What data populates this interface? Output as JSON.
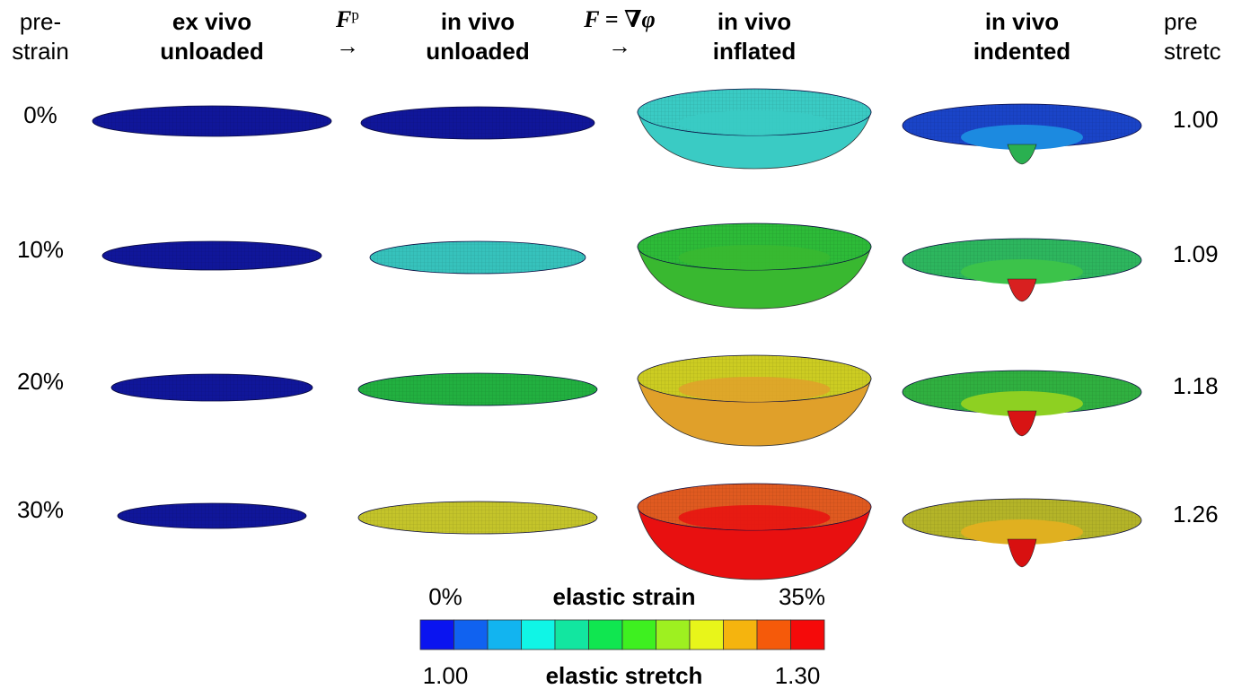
{
  "row_header": {
    "lines": [
      "pre-",
      "strain"
    ]
  },
  "right_header": {
    "lines": [
      "pre",
      "stretc"
    ]
  },
  "columns": [
    {
      "lines": [
        "ex vivo",
        "unloaded"
      ]
    },
    {
      "lines": [
        "in vivo",
        "unloaded"
      ]
    },
    {
      "lines": [
        "in vivo",
        "inflated"
      ]
    },
    {
      "lines": [
        "in vivo",
        "indented"
      ]
    }
  ],
  "arrows": [
    {
      "symbol": "F",
      "superscript": "p",
      "arrow": "→"
    },
    {
      "symbol": "F = ∇φ",
      "arrow": "→"
    }
  ],
  "rows": [
    {
      "prestrain": "0%",
      "prestretch": "1.00"
    },
    {
      "prestrain": "10%",
      "prestretch": "1.09"
    },
    {
      "prestrain": "20%",
      "prestretch": "1.18"
    },
    {
      "prestrain": "30%",
      "prestretch": "1.26"
    }
  ],
  "colorbar": {
    "strain_label": "elastic strain",
    "strain_min": "0%",
    "strain_max": "35%",
    "stretch_label": "elastic stretch",
    "stretch_min": "1.00",
    "stretch_max": "1.30",
    "colors": [
      "#0a14f0",
      "#1062f0",
      "#12b4f0",
      "#10f5e6",
      "#12e6a0",
      "#10e650",
      "#3ef020",
      "#9ef020",
      "#e8f51a",
      "#f5b40e",
      "#f55a0a",
      "#f50a0a"
    ]
  }
}
